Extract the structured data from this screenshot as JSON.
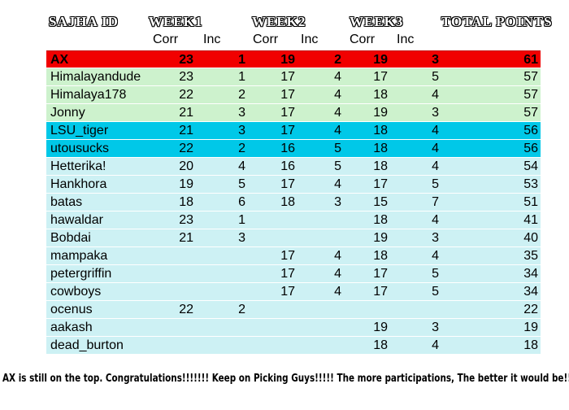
{
  "header": {
    "id_label": "SAJHA ID",
    "weeks": [
      {
        "label": "WEEK1"
      },
      {
        "label": "WEEK2"
      },
      {
        "label": "WEEK3"
      }
    ],
    "total_label": "TOTAL POINTS",
    "corr_label": "Corr",
    "inc_label": "Inc"
  },
  "rows": [
    {
      "id": "AX",
      "week1_corr": "23",
      "week1_inc": "1",
      "week2_corr": "19",
      "week2_inc": "2",
      "week3_corr": "19",
      "week3_inc": "3",
      "total": "61",
      "band": "leader-red"
    },
    {
      "id": "Himalayandude",
      "week1_corr": "23",
      "week1_inc": "1",
      "week2_corr": "17",
      "week2_inc": "4",
      "week3_corr": "17",
      "week3_inc": "5",
      "total": "57",
      "band": "green"
    },
    {
      "id": "Himalaya178",
      "week1_corr": "22",
      "week1_inc": "2",
      "week2_corr": "17",
      "week2_inc": "4",
      "week3_corr": "18",
      "week3_inc": "4",
      "total": "57",
      "band": "green"
    },
    {
      "id": "Jonny",
      "week1_corr": "21",
      "week1_inc": "3",
      "week2_corr": "17",
      "week2_inc": "4",
      "week3_corr": "19",
      "week3_inc": "3",
      "total": "57",
      "band": "green"
    },
    {
      "id": "LSU_tiger",
      "week1_corr": "21",
      "week1_inc": "3",
      "week2_corr": "17",
      "week2_inc": "4",
      "week3_corr": "18",
      "week3_inc": "4",
      "total": "56",
      "band": "blue"
    },
    {
      "id": "utousucks",
      "week1_corr": "22",
      "week1_inc": "2",
      "week2_corr": "16",
      "week2_inc": "5",
      "week3_corr": "18",
      "week3_inc": "4",
      "total": "56",
      "band": "blue"
    },
    {
      "id": "Hetterika!",
      "week1_corr": "20",
      "week1_inc": "4",
      "week2_corr": "16",
      "week2_inc": "5",
      "week3_corr": "18",
      "week3_inc": "4",
      "total": "54",
      "band": "cyan"
    },
    {
      "id": "Hankhora",
      "week1_corr": "19",
      "week1_inc": "5",
      "week2_corr": "17",
      "week2_inc": "4",
      "week3_corr": "17",
      "week3_inc": "5",
      "total": "53",
      "band": "cyan"
    },
    {
      "id": "batas",
      "week1_corr": "18",
      "week1_inc": "6",
      "week2_corr": "18",
      "week2_inc": "3",
      "week3_corr": "15",
      "week3_inc": "7",
      "total": "51",
      "band": "cyan"
    },
    {
      "id": "hawaldar",
      "week1_corr": "23",
      "week1_inc": "1",
      "week2_corr": "",
      "week2_inc": "",
      "week3_corr": "18",
      "week3_inc": "4",
      "total": "41",
      "band": "cyan"
    },
    {
      "id": "Bobdai",
      "week1_corr": "21",
      "week1_inc": "3",
      "week2_corr": "",
      "week2_inc": "",
      "week3_corr": "19",
      "week3_inc": "3",
      "total": "40",
      "band": "cyan"
    },
    {
      "id": "mampaka",
      "week1_corr": "",
      "week1_inc": "",
      "week2_corr": "17",
      "week2_inc": "4",
      "week3_corr": "18",
      "week3_inc": "4",
      "total": "35",
      "band": "cyan"
    },
    {
      "id": "petergriffin",
      "week1_corr": "",
      "week1_inc": "",
      "week2_corr": "17",
      "week2_inc": "4",
      "week3_corr": "17",
      "week3_inc": "5",
      "total": "34",
      "band": "cyan"
    },
    {
      "id": "cowboys",
      "week1_corr": "",
      "week1_inc": "",
      "week2_corr": "17",
      "week2_inc": "4",
      "week3_corr": "17",
      "week3_inc": "5",
      "total": "34",
      "band": "cyan"
    },
    {
      "id": "ocenus",
      "week1_corr": "22",
      "week1_inc": "2",
      "week2_corr": "",
      "week2_inc": "",
      "week3_corr": "",
      "week3_inc": "",
      "total": "22",
      "band": "cyan"
    },
    {
      "id": "aakash",
      "week1_corr": "",
      "week1_inc": "",
      "week2_corr": "",
      "week2_inc": "",
      "week3_corr": "19",
      "week3_inc": "3",
      "total": "19",
      "band": "cyan"
    },
    {
      "id": "dead_burton",
      "week1_corr": "",
      "week1_inc": "",
      "week2_corr": "",
      "week2_inc": "",
      "week3_corr": "18",
      "week3_inc": "4",
      "total": "18",
      "band": "cyan"
    }
  ],
  "footer": {
    "message": "AX is still on the top. Congratulations!!!!!!! Keep on Picking Guys!!!!! The more participations, The better it would be!!"
  },
  "colors": {
    "leader_row_bg": "#f10000",
    "green_band_bg": "#cdf2cd",
    "blue_band_bg": "#00c8e8",
    "cyan_band_bg": "#cdf1f4",
    "row_divider": "#ffffff",
    "text": "#000000"
  }
}
